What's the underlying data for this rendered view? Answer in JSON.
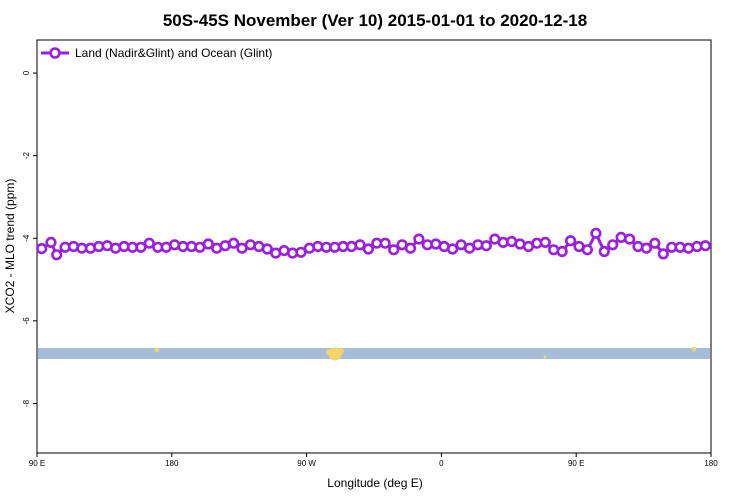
{
  "chart_data": {
    "type": "line",
    "title": "50S-45S November (Ver 10)   2015-01-01 to 2020-12-18",
    "xlabel": "Longitude (deg E)",
    "ylabel": "XCO2 - MLO trend (ppm)",
    "xlim": [
      90,
      450
    ],
    "ylim": [
      -9.2,
      0.8
    ],
    "x_ticks": [
      {
        "value": 90,
        "label": "90 E"
      },
      {
        "value": 162,
        "label": "180"
      },
      {
        "value": 234,
        "label": "90 W"
      },
      {
        "value": 306,
        "label": "0"
      },
      {
        "value": 378,
        "label": "90 E"
      },
      {
        "value": 450,
        "label": "180"
      }
    ],
    "y_ticks": [
      0,
      -2,
      -4,
      -6,
      -8
    ],
    "grid": false,
    "legend_position": "top-left",
    "colors": {
      "series": "#9a1ee6",
      "land_band": "#a7bcd9",
      "land_patch": "#f5d56a"
    },
    "series": [
      {
        "name": "Land (Nadir&Glint) and Ocean (Glint)",
        "x": [
          92.5,
          97.5,
          100.5,
          105,
          109.5,
          114,
          118.5,
          123,
          127.5,
          132,
          136.5,
          141,
          145.5,
          150,
          154.5,
          159,
          163.5,
          168,
          172.5,
          177,
          181.5,
          186,
          190.5,
          195,
          199.5,
          204,
          208.5,
          213,
          217.5,
          222,
          226.5,
          231,
          235.5,
          240,
          244.5,
          249,
          253.5,
          258,
          262.5,
          267,
          271.5,
          276,
          280.5,
          285,
          289.5,
          294,
          298.5,
          303,
          307.5,
          312,
          316.5,
          321,
          325.5,
          330,
          334.5,
          339,
          343.5,
          348,
          352.5,
          357,
          361.5,
          366,
          370.5,
          375,
          379.5,
          384,
          388.5,
          393,
          397.5,
          402,
          406.5,
          411,
          415.5,
          420,
          424.5,
          429,
          433.5,
          438,
          442.5,
          447
        ],
        "y": [
          -4.25,
          -4.1,
          -4.4,
          -4.22,
          -4.2,
          -4.24,
          -4.24,
          -4.2,
          -4.18,
          -4.24,
          -4.2,
          -4.22,
          -4.22,
          -4.12,
          -4.22,
          -4.22,
          -4.16,
          -4.2,
          -4.2,
          -4.22,
          -4.14,
          -4.24,
          -4.18,
          -4.12,
          -4.24,
          -4.16,
          -4.2,
          -4.26,
          -4.36,
          -4.3,
          -4.36,
          -4.34,
          -4.24,
          -4.2,
          -4.22,
          -4.22,
          -4.2,
          -4.2,
          -4.16,
          -4.26,
          -4.12,
          -4.12,
          -4.28,
          -4.16,
          -4.24,
          -4.02,
          -4.16,
          -4.14,
          -4.2,
          -4.26,
          -4.16,
          -4.24,
          -4.16,
          -4.18,
          -4.02,
          -4.1,
          -4.08,
          -4.14,
          -4.2,
          -4.12,
          -4.1,
          -4.28,
          -4.32,
          -4.06,
          -4.2,
          -4.28,
          -3.88,
          -4.32,
          -4.16,
          -3.98,
          -4.02,
          -4.2,
          -4.24,
          -4.12,
          -4.38,
          -4.22,
          -4.22,
          -4.24,
          -4.2,
          -4.18
        ]
      }
    ]
  }
}
